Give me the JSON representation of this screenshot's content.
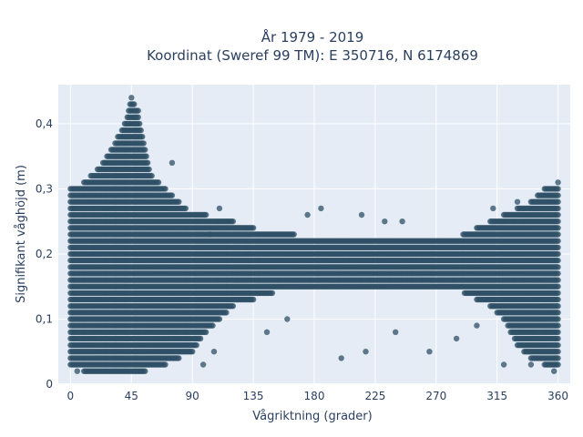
{
  "chart_data": {
    "type": "scatter",
    "title_lines": [
      "År 1979 - 2019",
      "Koordinat (Sweref 99 TM): E 350716, N 6174869"
    ],
    "xlabel": "Vågriktning (grader)",
    "ylabel": "Signifikant våghöjd (m)",
    "xlim": [
      -9,
      369
    ],
    "ylim": [
      0,
      0.46
    ],
    "x_ticks": [
      0,
      45,
      90,
      135,
      180,
      225,
      270,
      315,
      360
    ],
    "x_tick_labels": [
      "0",
      "45",
      "90",
      "135",
      "180",
      "225",
      "270",
      "315",
      "360"
    ],
    "y_ticks": [
      0,
      0.1,
      0.2,
      0.3,
      0.4
    ],
    "y_tick_labels": [
      "0",
      "0,1",
      "0,2",
      "0,3",
      "0,4"
    ],
    "grid": true,
    "marker_color": "#2f5066",
    "plot_background": "#e5ecf6",
    "envelope": {
      "x": [
        0,
        10,
        20,
        30,
        40,
        45,
        50,
        55,
        60,
        70,
        80,
        90,
        100,
        110,
        120,
        135,
        150,
        165,
        180,
        200,
        225,
        250,
        270,
        290,
        300,
        310,
        320,
        330,
        340,
        350,
        360
      ],
      "y_max": [
        0.3,
        0.31,
        0.33,
        0.36,
        0.4,
        0.44,
        0.42,
        0.36,
        0.32,
        0.3,
        0.28,
        0.26,
        0.26,
        0.25,
        0.25,
        0.24,
        0.23,
        0.23,
        0.22,
        0.22,
        0.22,
        0.22,
        0.22,
        0.23,
        0.24,
        0.25,
        0.26,
        0.27,
        0.28,
        0.3,
        0.31
      ],
      "y_min": [
        0.03,
        0.02,
        0.02,
        0.02,
        0.02,
        0.02,
        0.02,
        0.02,
        0.03,
        0.03,
        0.04,
        0.05,
        0.08,
        0.1,
        0.12,
        0.13,
        0.14,
        0.15,
        0.15,
        0.15,
        0.15,
        0.15,
        0.15,
        0.14,
        0.13,
        0.12,
        0.1,
        0.06,
        0.04,
        0.03,
        0.03
      ]
    },
    "outliers": [
      {
        "x": 103,
        "y": 0.23
      },
      {
        "x": 110,
        "y": 0.27
      },
      {
        "x": 175,
        "y": 0.26
      },
      {
        "x": 185,
        "y": 0.27
      },
      {
        "x": 215,
        "y": 0.26
      },
      {
        "x": 232,
        "y": 0.25
      },
      {
        "x": 245,
        "y": 0.25
      },
      {
        "x": 200,
        "y": 0.04
      },
      {
        "x": 218,
        "y": 0.05
      },
      {
        "x": 265,
        "y": 0.05
      },
      {
        "x": 285,
        "y": 0.07
      },
      {
        "x": 240,
        "y": 0.08
      },
      {
        "x": 145,
        "y": 0.08
      },
      {
        "x": 160,
        "y": 0.1
      },
      {
        "x": 300,
        "y": 0.09
      },
      {
        "x": 320,
        "y": 0.03
      },
      {
        "x": 98,
        "y": 0.03
      },
      {
        "x": 106,
        "y": 0.05
      },
      {
        "x": 340,
        "y": 0.03
      },
      {
        "x": 357,
        "y": 0.02
      },
      {
        "x": 5,
        "y": 0.02
      },
      {
        "x": 312,
        "y": 0.27
      },
      {
        "x": 330,
        "y": 0.28
      },
      {
        "x": 75,
        "y": 0.34
      }
    ]
  }
}
